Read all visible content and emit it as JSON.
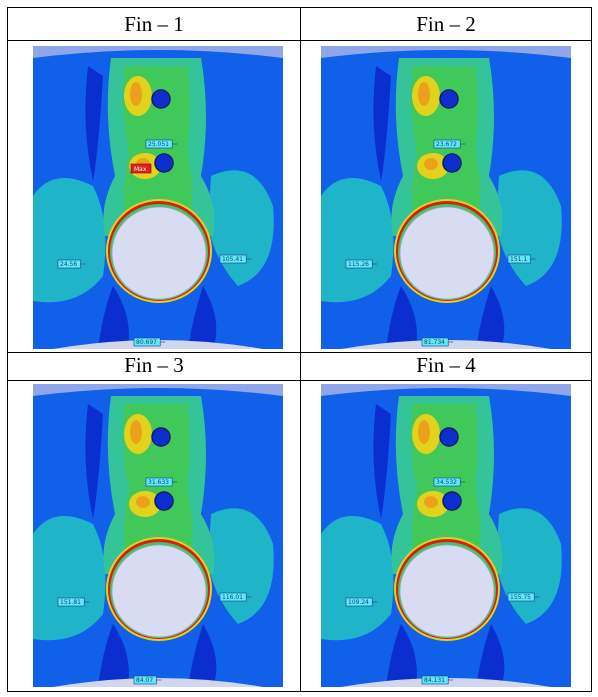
{
  "captions": [
    "Fin – 1",
    "Fin – 2",
    "Fin – 3",
    "Fin – 4"
  ],
  "colors": {
    "deep_blue": "#0b2fcf",
    "blue": "#1060ea",
    "cyan": "#1fb4c8",
    "teal": "#35c39a",
    "green": "#40c95a",
    "yellow": "#e3d21b",
    "orange": "#eba21a",
    "red": "#d81c1a",
    "hole": "#d7dcf2",
    "tag": "#5fe9f5"
  },
  "panels": [
    {
      "name": "fin-1",
      "probes": [
        {
          "text": "25.051",
          "slot": "top"
        },
        {
          "text": "24.56",
          "slot": "left"
        },
        {
          "text": "105.41",
          "slot": "right"
        },
        {
          "text": "80.697",
          "slot": "bottom"
        }
      ],
      "max_label": "Max"
    },
    {
      "name": "fin-2",
      "probes": [
        {
          "text": "23.672",
          "slot": "top"
        },
        {
          "text": "115.26",
          "slot": "left"
        },
        {
          "text": "151.1",
          "slot": "right"
        },
        {
          "text": "81.734",
          "slot": "bottom"
        }
      ]
    },
    {
      "name": "fin-3",
      "probes": [
        {
          "text": "31.633",
          "slot": "top"
        },
        {
          "text": "151.81",
          "slot": "left"
        },
        {
          "text": "116.01",
          "slot": "right"
        },
        {
          "text": "84.07",
          "slot": "bottom"
        }
      ]
    },
    {
      "name": "fin-4",
      "probes": [
        {
          "text": "34.532",
          "slot": "top"
        },
        {
          "text": "109.24",
          "slot": "left"
        },
        {
          "text": "155.75",
          "slot": "right"
        },
        {
          "text": "84.131",
          "slot": "bottom"
        }
      ]
    }
  ]
}
